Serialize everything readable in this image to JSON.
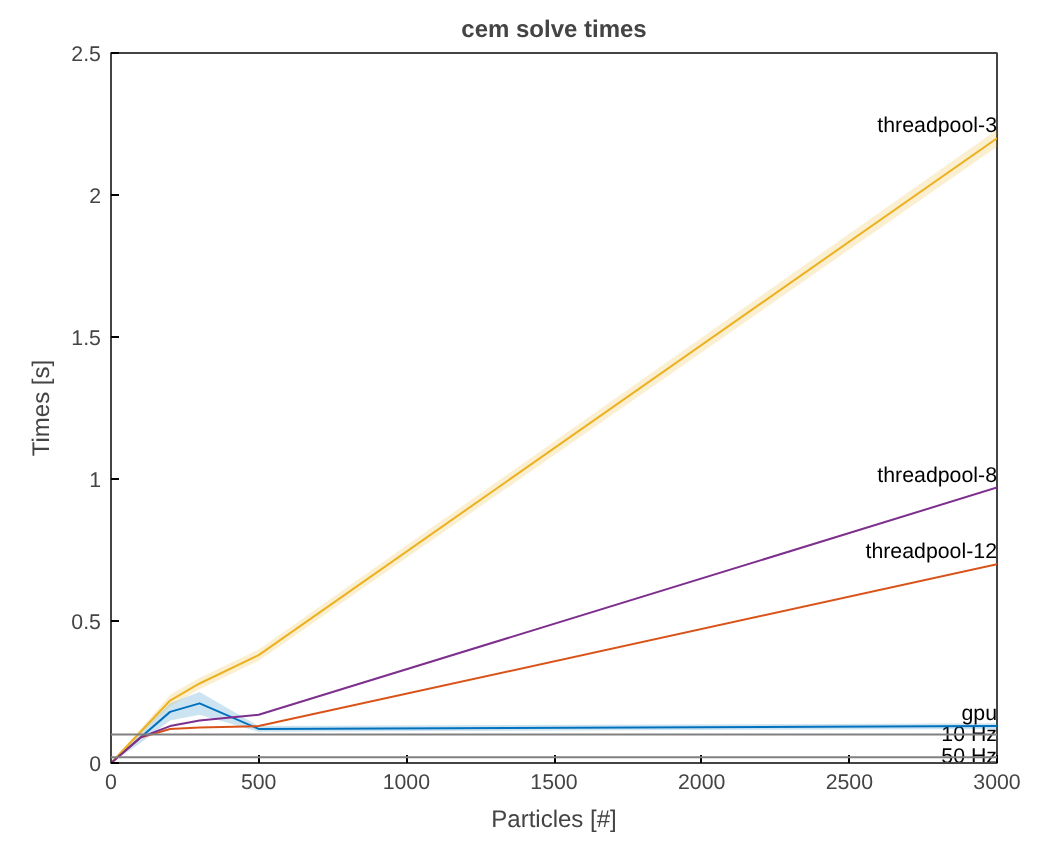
{
  "chart_data": {
    "type": "line",
    "title": "cem solve times",
    "xlabel": "Particles [#]",
    "ylabel": "Times [s]",
    "x": [
      0,
      100,
      200,
      300,
      500,
      3000
    ],
    "series": [
      {
        "name": "gpu",
        "color": "#0072bd",
        "values": [
          0,
          0.09,
          0.18,
          0.21,
          0.12,
          0.13
        ],
        "lower": [
          0,
          0.07,
          0.15,
          0.17,
          0.11,
          0.12
        ],
        "upper": [
          0,
          0.11,
          0.21,
          0.25,
          0.13,
          0.14
        ]
      },
      {
        "name": "threadpool-12",
        "color": "#d95319",
        "values": [
          0,
          0.09,
          0.12,
          0.125,
          0.13,
          0.7
        ]
      },
      {
        "name": "threadpool-3",
        "color": "#edb120",
        "values": [
          0,
          0.11,
          0.22,
          0.28,
          0.38,
          2.2
        ],
        "lower": [
          0,
          0.1,
          0.2,
          0.26,
          0.36,
          2.17
        ],
        "upper": [
          0,
          0.12,
          0.24,
          0.3,
          0.4,
          2.23
        ]
      },
      {
        "name": "threadpool-8",
        "color": "#7e2f8e",
        "values": [
          0,
          0.09,
          0.13,
          0.15,
          0.17,
          0.97
        ]
      }
    ],
    "ref_lines": [
      {
        "axis": "y",
        "value": 0.1,
        "label": "10 Hz",
        "color": "#808080"
      },
      {
        "axis": "y",
        "value": 0.02,
        "label": "50 Hz",
        "color": "#808080"
      }
    ],
    "xlim": [
      0,
      3000
    ],
    "ylim": [
      0,
      2.5
    ],
    "xticks": [
      0,
      500,
      1000,
      1500,
      2000,
      2500,
      3000
    ],
    "yticks": [
      0,
      0.5,
      1,
      1.5,
      2,
      2.5
    ],
    "marker": "none",
    "line_style": "solid"
  }
}
